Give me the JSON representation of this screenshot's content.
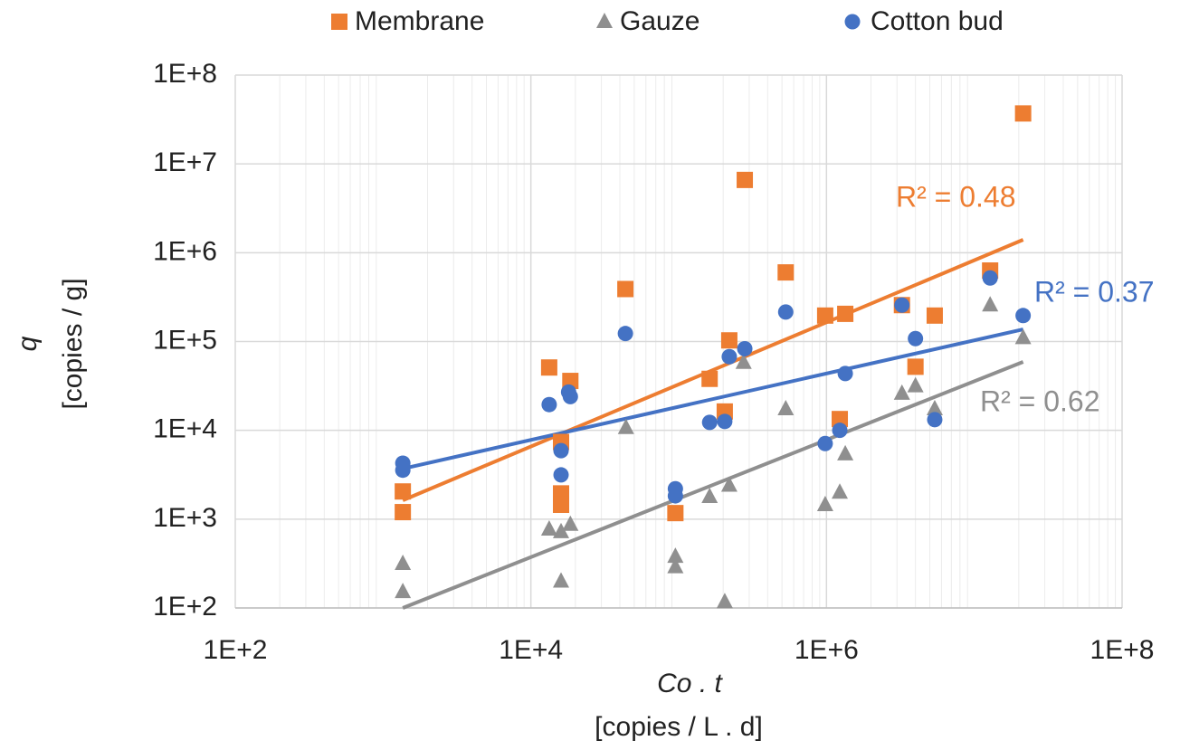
{
  "chart_data": {
    "type": "scatter",
    "x_label": "Co . t",
    "x_label_unit": "[copies / L . d]",
    "y_label": "q",
    "y_label_unit": "[copies / g]",
    "log_x": true,
    "log_y": true,
    "grid": true,
    "legend": "top",
    "xlim": [
      100,
      100000000
    ],
    "ylim": [
      100,
      100000000
    ],
    "xticks": [
      {
        "value": 100,
        "label": "1E+2"
      },
      {
        "value": 10000,
        "label": "1E+4"
      },
      {
        "value": 1000000,
        "label": "1E+6"
      },
      {
        "value": 100000000,
        "label": "1E+8"
      }
    ],
    "yticks": [
      {
        "value": 100,
        "label": "1E+2"
      },
      {
        "value": 1000,
        "label": "1E+3"
      },
      {
        "value": 10000,
        "label": "1E+4"
      },
      {
        "value": 100000,
        "label": "1E+5"
      },
      {
        "value": 1000000,
        "label": "1E+6"
      },
      {
        "value": 10000000,
        "label": "1E+7"
      },
      {
        "value": 100000000,
        "label": "1E+8"
      }
    ],
    "series": [
      {
        "name": "Membrane",
        "color": "#ed7d31",
        "marker": "square",
        "x": [
          1360,
          1360,
          13300,
          18500,
          16000,
          16000,
          16000,
          43600,
          95000,
          162000,
          205000,
          220000,
          280000,
          530000,
          980000,
          1340000,
          1230000,
          3240000,
          4000000,
          5400000,
          12800000,
          21400000
        ],
        "values": [
          1200,
          2050,
          51000,
          36000,
          1950,
          1450,
          7400,
          390000,
          1170,
          38000,
          16300,
          103000,
          6600000,
          600000,
          196000,
          205000,
          13400,
          257000,
          52000,
          196000,
          630000,
          37000000
        ],
        "trendline": {
          "x": [
            1360,
            21400000
          ],
          "values": [
            1630,
            1400000
          ]
        },
        "r2_label": "R² = 0.48"
      },
      {
        "name": "Gauze",
        "color": "#8f8f8f",
        "marker": "triangle",
        "x": [
          1360,
          1360,
          13300,
          16000,
          18500,
          16000,
          44000,
          95000,
          95000,
          162000,
          205000,
          220000,
          275000,
          530000,
          980000,
          1230000,
          1340000,
          3240000,
          4000000,
          5400000,
          12800000,
          21400000
        ],
        "values": [
          316,
          152,
          770,
          720,
          870,
          200,
          10700,
          380,
          290,
          1790,
          117,
          2400,
          58000,
          17400,
          1450,
          2000,
          5400,
          26000,
          31600,
          17400,
          257000,
          110000
        ],
        "trendline": {
          "x": [
            1360,
            21400000
          ],
          "values": [
            100,
            59000
          ]
        },
        "r2_label": "R² = 0.62"
      },
      {
        "name": "Cotton bud",
        "color": "#4472c4",
        "marker": "circle",
        "x": [
          1360,
          1360,
          13300,
          18000,
          18500,
          16000,
          16000,
          43600,
          95000,
          95000,
          162000,
          205000,
          220000,
          280000,
          530000,
          980000,
          1230000,
          1340000,
          3240000,
          4000000,
          5400000,
          12800000,
          21400000
        ],
        "values": [
          4270,
          3560,
          19500,
          27000,
          24000,
          5900,
          3150,
          123000,
          2200,
          1830,
          12300,
          12600,
          67500,
          83000,
          215000,
          7100,
          10000,
          43600,
          257000,
          108000,
          13200,
          520000,
          196000
        ],
        "trendline": {
          "x": [
            1360,
            21400000
          ],
          "values": [
            3700,
            137000
          ]
        },
        "r2_label": "R² = 0.37"
      }
    ]
  }
}
